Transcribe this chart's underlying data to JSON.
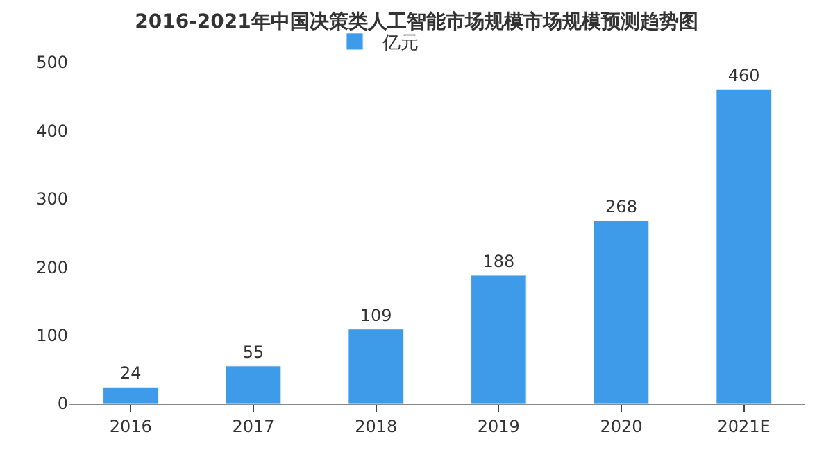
{
  "chart_data": {
    "type": "bar",
    "title": "2016-2021年中国决策类人工智能市场规模市场规模预测趋势图",
    "categories": [
      "2016",
      "2017",
      "2018",
      "2019",
      "2020",
      "2021E"
    ],
    "series": [
      {
        "name": "亿元",
        "color": "#3d9be9",
        "values": [
          24,
          55,
          109,
          188,
          268,
          460
        ]
      }
    ],
    "ylim": [
      0,
      500
    ],
    "yticks": [
      0,
      100,
      200,
      300,
      400,
      500
    ],
    "legend": "top",
    "data_labels": true
  }
}
